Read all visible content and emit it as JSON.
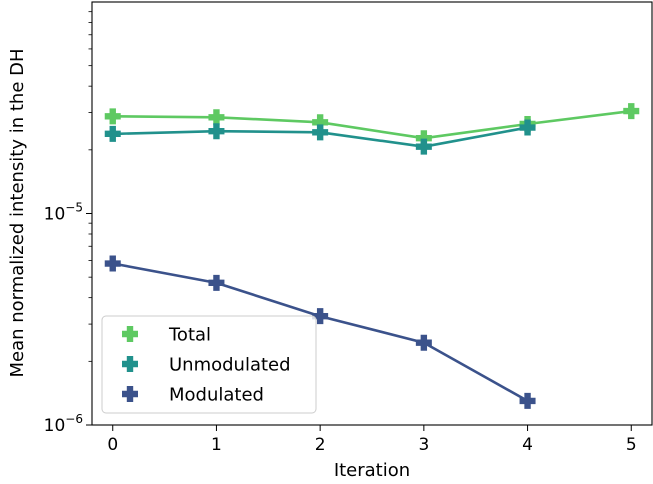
{
  "chart_data": {
    "type": "line",
    "xlabel": "Iteration",
    "ylabel": "Mean normalized intensity in the DH",
    "yscale": "log",
    "xlim": [
      -0.2,
      5.2
    ],
    "ylim": [
      1e-06,
      0.0001
    ],
    "x_ticks": [
      0,
      1,
      2,
      3,
      4,
      5
    ],
    "x_tick_labels": [
      "0",
      "1",
      "2",
      "3",
      "4",
      "5"
    ],
    "y_ticks": [
      {
        "value": 1e-05,
        "base": "10",
        "exp": "−5"
      },
      {
        "value": 1e-06,
        "base": "10",
        "exp": "−6"
      }
    ],
    "grid": false,
    "legend_position": "lower-left",
    "marker": "plus",
    "series": [
      {
        "name": "Total",
        "color": "#5ec962",
        "x": [
          0,
          1,
          2,
          3,
          4,
          5
        ],
        "y": [
          2.88e-05,
          2.85e-05,
          2.7e-05,
          2.27e-05,
          2.65e-05,
          3.05e-05
        ]
      },
      {
        "name": "Unmodulated",
        "color": "#21918c",
        "x": [
          0,
          1,
          2,
          3,
          4
        ],
        "y": [
          2.38e-05,
          2.45e-05,
          2.42e-05,
          2.07e-05,
          2.55e-05
        ]
      },
      {
        "name": "Modulated",
        "color": "#3b528b",
        "x": [
          0,
          1,
          2,
          3,
          4
        ],
        "y": [
          5.8e-06,
          4.7e-06,
          3.27e-06,
          2.45e-06,
          1.3e-06
        ]
      }
    ]
  }
}
